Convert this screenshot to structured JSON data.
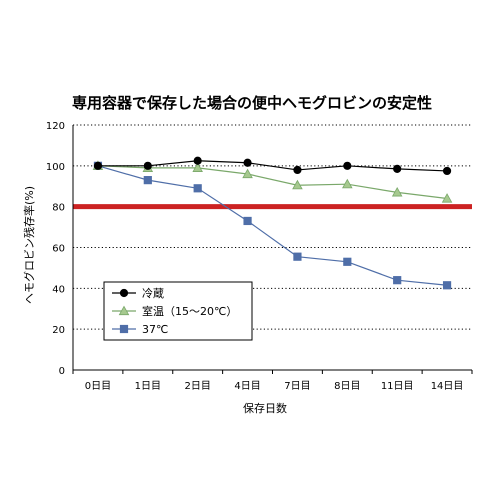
{
  "chart_data": {
    "type": "line",
    "title": "専用容器で保存した場合の便中ヘモグロビンの安定性",
    "xlabel": "保存日数",
    "ylabel": "ヘモグロビン残存率(%)",
    "categories": [
      "0日目",
      "1日目",
      "2日目",
      "4日目",
      "7日目",
      "8日目",
      "11日目",
      "14日目"
    ],
    "ylim": [
      0,
      120
    ],
    "yticks": [
      0,
      20,
      40,
      60,
      80,
      100,
      120
    ],
    "grid": true,
    "legend_position": "bottom-left",
    "reference_line": {
      "value": 80,
      "color": "#cc2222"
    },
    "series": [
      {
        "name": "冷蔵",
        "marker": "circle",
        "color": "#000000",
        "values": [
          100,
          100,
          102.5,
          101.5,
          98,
          100,
          98.5,
          97.5
        ]
      },
      {
        "name": "室温（15～20℃）",
        "marker": "triangle",
        "color": "#7aa86a",
        "values": [
          100,
          99,
          99,
          96,
          90.5,
          91,
          87,
          84
        ]
      },
      {
        "name": "37℃",
        "marker": "square",
        "color": "#4f6ea8",
        "values": [
          100,
          93,
          89,
          73,
          55.5,
          53,
          44,
          41.5
        ]
      }
    ]
  }
}
